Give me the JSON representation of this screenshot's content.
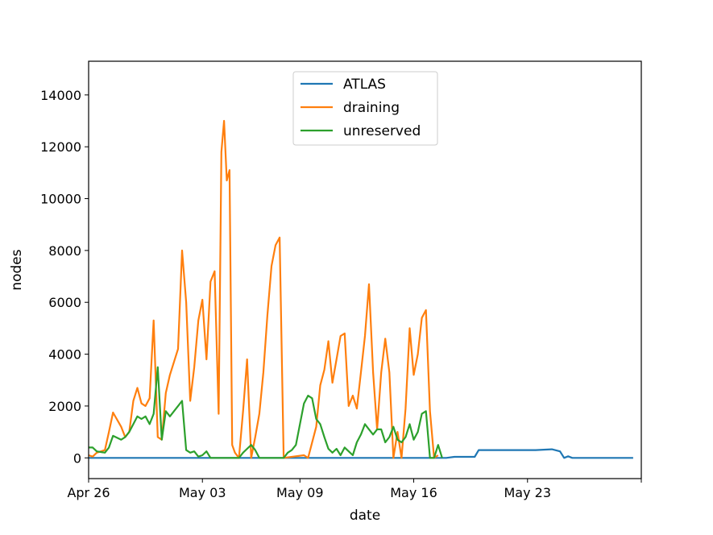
{
  "chart_data": {
    "type": "line",
    "xlabel": "date",
    "ylabel": "nodes",
    "xlim": [
      "2021-04-26",
      "2021-05-30"
    ],
    "ylim": [
      -800,
      15300
    ],
    "x_ticks": [
      {
        "date": "2021-04-26",
        "label": "Apr 26"
      },
      {
        "date": "2021-05-03",
        "label": "May 03"
      },
      {
        "date": "2021-05-09",
        "label": "May 09"
      },
      {
        "date": "2021-05-16",
        "label": "May 16"
      },
      {
        "date": "2021-05-23",
        "label": "May 23"
      },
      {
        "date": "2021-05-30",
        "label": ""
      }
    ],
    "y_ticks": [
      0,
      2000,
      4000,
      6000,
      8000,
      10000,
      12000,
      14000
    ],
    "legend": {
      "position": "upper center"
    },
    "grid": false,
    "series": [
      {
        "name": "ATLAS",
        "color": "#1f77b4",
        "points": [
          [
            "2021-04-26",
            0
          ],
          [
            "2021-05-18",
            0
          ],
          [
            "2021-05-18 12:00",
            40
          ],
          [
            "2021-05-19 18:00",
            40
          ],
          [
            "2021-05-20",
            300
          ],
          [
            "2021-05-22 18:00",
            300
          ],
          [
            "2021-05-23 12:00",
            300
          ],
          [
            "2021-05-24 12:00",
            330
          ],
          [
            "2021-05-25",
            250
          ],
          [
            "2021-05-25 06:00",
            0
          ],
          [
            "2021-05-25 12:00",
            60
          ],
          [
            "2021-05-25 18:00",
            0
          ],
          [
            "2021-05-29 12:00",
            0
          ]
        ]
      },
      {
        "name": "draining",
        "color": "#ff7f0e",
        "points": [
          [
            "2021-04-26",
            100
          ],
          [
            "2021-04-26 06:00",
            50
          ],
          [
            "2021-04-26 12:00",
            200
          ],
          [
            "2021-04-27",
            300
          ],
          [
            "2021-04-27 06:00",
            1000
          ],
          [
            "2021-04-27 12:00",
            1750
          ],
          [
            "2021-04-28",
            1200
          ],
          [
            "2021-04-28 06:00",
            800
          ],
          [
            "2021-04-28 12:00",
            1000
          ],
          [
            "2021-04-28 18:00",
            2200
          ],
          [
            "2021-04-29",
            2700
          ],
          [
            "2021-04-29 06:00",
            2100
          ],
          [
            "2021-04-29 12:00",
            2000
          ],
          [
            "2021-04-29 18:00",
            2300
          ],
          [
            "2021-04-30",
            5300
          ],
          [
            "2021-04-30 06:00",
            800
          ],
          [
            "2021-04-30 12:00",
            700
          ],
          [
            "2021-04-30 18:00",
            2500
          ],
          [
            "2021-05-01",
            3200
          ],
          [
            "2021-05-01 12:00",
            4200
          ],
          [
            "2021-05-01 18:00",
            8000
          ],
          [
            "2021-05-02",
            6000
          ],
          [
            "2021-05-02 06:00",
            2200
          ],
          [
            "2021-05-02 12:00",
            3500
          ],
          [
            "2021-05-02 18:00",
            5300
          ],
          [
            "2021-05-03",
            6100
          ],
          [
            "2021-05-03 06:00",
            3800
          ],
          [
            "2021-05-03 12:00",
            6800
          ],
          [
            "2021-05-03 18:00",
            7200
          ],
          [
            "2021-05-04",
            1700
          ],
          [
            "2021-05-04 04:00",
            11800
          ],
          [
            "2021-05-04 08:00",
            13000
          ],
          [
            "2021-05-04 12:00",
            10700
          ],
          [
            "2021-05-04 16:00",
            11100
          ],
          [
            "2021-05-04 20:00",
            500
          ],
          [
            "2021-05-05",
            200
          ],
          [
            "2021-05-05 06:00",
            0
          ],
          [
            "2021-05-05 12:00",
            1800
          ],
          [
            "2021-05-05 18:00",
            3800
          ],
          [
            "2021-05-06",
            0
          ],
          [
            "2021-05-06 06:00",
            800
          ],
          [
            "2021-05-06 12:00",
            1700
          ],
          [
            "2021-05-06 18:00",
            3300
          ],
          [
            "2021-05-07",
            5500
          ],
          [
            "2021-05-07 06:00",
            7400
          ],
          [
            "2021-05-07 12:00",
            8200
          ],
          [
            "2021-05-07 18:00",
            8500
          ],
          [
            "2021-05-08",
            0
          ],
          [
            "2021-05-09 06:00",
            100
          ],
          [
            "2021-05-09 12:00",
            0
          ],
          [
            "2021-05-10",
            1200
          ],
          [
            "2021-05-10 06:00",
            2800
          ],
          [
            "2021-05-10 12:00",
            3400
          ],
          [
            "2021-05-10 18:00",
            4500
          ],
          [
            "2021-05-11",
            2900
          ],
          [
            "2021-05-11 06:00",
            3800
          ],
          [
            "2021-05-11 12:00",
            4700
          ],
          [
            "2021-05-11 18:00",
            4800
          ],
          [
            "2021-05-12",
            2000
          ],
          [
            "2021-05-12 06:00",
            2400
          ],
          [
            "2021-05-12 12:00",
            1900
          ],
          [
            "2021-05-12 18:00",
            3300
          ],
          [
            "2021-05-13",
            4700
          ],
          [
            "2021-05-13 06:00",
            6700
          ],
          [
            "2021-05-13 12:00",
            3300
          ],
          [
            "2021-05-13 18:00",
            1100
          ],
          [
            "2021-05-14",
            3300
          ],
          [
            "2021-05-14 06:00",
            4600
          ],
          [
            "2021-05-14 12:00",
            3300
          ],
          [
            "2021-05-14 18:00",
            0
          ],
          [
            "2021-05-15",
            1000
          ],
          [
            "2021-05-15 06:00",
            0
          ],
          [
            "2021-05-15 12:00",
            1900
          ],
          [
            "2021-05-15 18:00",
            5000
          ],
          [
            "2021-05-16",
            3200
          ],
          [
            "2021-05-16 06:00",
            4000
          ],
          [
            "2021-05-16 12:00",
            5400
          ],
          [
            "2021-05-16 18:00",
            5700
          ],
          [
            "2021-05-17",
            1800
          ],
          [
            "2021-05-17 06:00",
            0
          ],
          [
            "2021-05-17 12:00",
            100
          ]
        ]
      },
      {
        "name": "unreserved",
        "color": "#2ca02c",
        "points": [
          [
            "2021-04-26",
            400
          ],
          [
            "2021-04-26 06:00",
            400
          ],
          [
            "2021-04-26 12:00",
            250
          ],
          [
            "2021-04-27",
            200
          ],
          [
            "2021-04-27 06:00",
            400
          ],
          [
            "2021-04-27 12:00",
            850
          ],
          [
            "2021-04-28",
            700
          ],
          [
            "2021-04-28 06:00",
            800
          ],
          [
            "2021-04-28 12:00",
            1000
          ],
          [
            "2021-04-29",
            1600
          ],
          [
            "2021-04-29 06:00",
            1500
          ],
          [
            "2021-04-29 12:00",
            1600
          ],
          [
            "2021-04-29 18:00",
            1300
          ],
          [
            "2021-04-30",
            1700
          ],
          [
            "2021-04-30 06:00",
            3500
          ],
          [
            "2021-04-30 12:00",
            700
          ],
          [
            "2021-04-30 18:00",
            1800
          ],
          [
            "2021-05-01",
            1600
          ],
          [
            "2021-05-01 12:00",
            2000
          ],
          [
            "2021-05-01 18:00",
            2200
          ],
          [
            "2021-05-02",
            300
          ],
          [
            "2021-05-02 06:00",
            200
          ],
          [
            "2021-05-02 12:00",
            250
          ],
          [
            "2021-05-02 18:00",
            50
          ],
          [
            "2021-05-03",
            100
          ],
          [
            "2021-05-03 06:00",
            250
          ],
          [
            "2021-05-03 12:00",
            0
          ],
          [
            "2021-05-04",
            0
          ],
          [
            "2021-05-05",
            0
          ],
          [
            "2021-05-05 06:00",
            0
          ],
          [
            "2021-05-05 12:00",
            200
          ],
          [
            "2021-05-05 18:00",
            350
          ],
          [
            "2021-05-06",
            500
          ],
          [
            "2021-05-06 06:00",
            300
          ],
          [
            "2021-05-06 12:00",
            0
          ],
          [
            "2021-05-07",
            0
          ],
          [
            "2021-05-08",
            0
          ],
          [
            "2021-05-08 06:00",
            200
          ],
          [
            "2021-05-08 12:00",
            300
          ],
          [
            "2021-05-08 18:00",
            500
          ],
          [
            "2021-05-09",
            1300
          ],
          [
            "2021-05-09 06:00",
            2100
          ],
          [
            "2021-05-09 12:00",
            2400
          ],
          [
            "2021-05-09 18:00",
            2300
          ],
          [
            "2021-05-10",
            1500
          ],
          [
            "2021-05-10 06:00",
            1300
          ],
          [
            "2021-05-10 12:00",
            800
          ],
          [
            "2021-05-10 18:00",
            350
          ],
          [
            "2021-05-11",
            200
          ],
          [
            "2021-05-11 06:00",
            350
          ],
          [
            "2021-05-11 12:00",
            100
          ],
          [
            "2021-05-11 18:00",
            400
          ],
          [
            "2021-05-12",
            250
          ],
          [
            "2021-05-12 06:00",
            100
          ],
          [
            "2021-05-12 12:00",
            600
          ],
          [
            "2021-05-12 18:00",
            900
          ],
          [
            "2021-05-13",
            1300
          ],
          [
            "2021-05-13 06:00",
            1100
          ],
          [
            "2021-05-13 12:00",
            900
          ],
          [
            "2021-05-13 18:00",
            1100
          ],
          [
            "2021-05-14",
            1100
          ],
          [
            "2021-05-14 06:00",
            600
          ],
          [
            "2021-05-14 12:00",
            800
          ],
          [
            "2021-05-14 18:00",
            1200
          ],
          [
            "2021-05-15",
            700
          ],
          [
            "2021-05-15 06:00",
            600
          ],
          [
            "2021-05-15 12:00",
            800
          ],
          [
            "2021-05-15 18:00",
            1300
          ],
          [
            "2021-05-16",
            700
          ],
          [
            "2021-05-16 06:00",
            1000
          ],
          [
            "2021-05-16 12:00",
            1700
          ],
          [
            "2021-05-16 18:00",
            1800
          ],
          [
            "2021-05-17",
            0
          ],
          [
            "2021-05-17 06:00",
            0
          ],
          [
            "2021-05-17 12:00",
            500
          ],
          [
            "2021-05-17 18:00",
            0
          ]
        ]
      }
    ]
  }
}
